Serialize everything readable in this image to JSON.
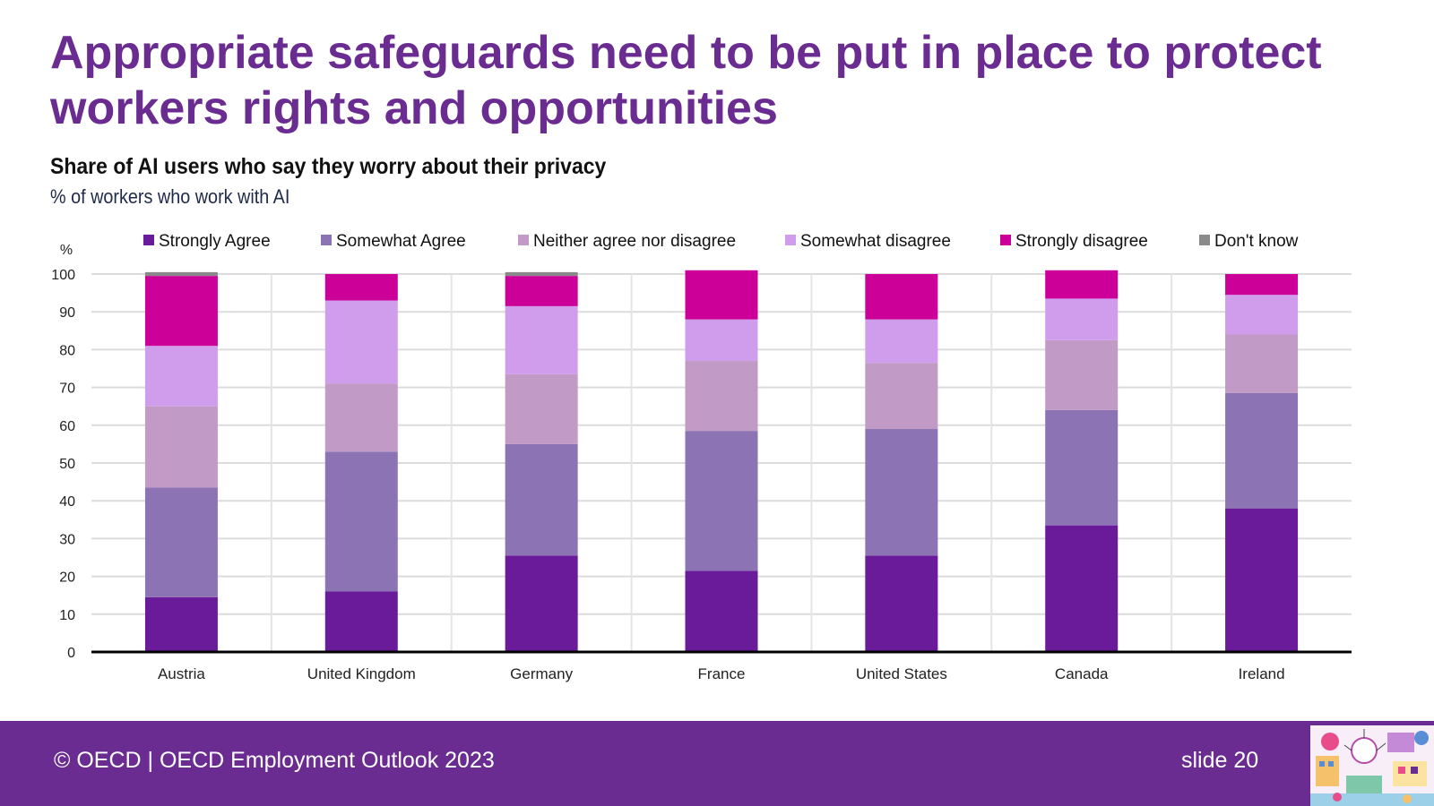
{
  "slide": {
    "title": "Appropriate safeguards need to be put in place to protect workers rights and opportunities"
  },
  "footer": {
    "copyright": "© OECD | OECD Employment Outlook 2023",
    "slide_number": "slide 20"
  },
  "colors": {
    "brand": "#6a2c91",
    "strongly_agree": "#6a1b9a",
    "somewhat_agree": "#8c74b4",
    "neither": "#c19ac6",
    "somewhat_disagree": "#d09cec",
    "strongly_disagree": "#cc0099",
    "dont_know": "#8a8a8a"
  },
  "chart_data": {
    "type": "bar",
    "stacked": true,
    "title": "Share of AI users who say they worry about their privacy",
    "subtitle": "% of workers who work with AI",
    "ylabel": "%",
    "xlabel": "",
    "ylim": [
      0,
      100
    ],
    "yticks": [
      0,
      10,
      20,
      30,
      40,
      50,
      60,
      70,
      80,
      90,
      100
    ],
    "grid": true,
    "legend_position": "top",
    "categories": [
      "Austria",
      "United Kingdom",
      "Germany",
      "France",
      "United States",
      "Canada",
      "Ireland"
    ],
    "series": [
      {
        "name": "Strongly Agree",
        "color": "#6a1b9a",
        "values": [
          14.5,
          16,
          25.5,
          21.5,
          25.5,
          33.5,
          38
        ]
      },
      {
        "name": "Somewhat Agree",
        "color": "#8c74b4",
        "values": [
          29,
          37,
          29.5,
          37,
          33.5,
          30.5,
          30.5
        ]
      },
      {
        "name": "Neither agree nor disagree",
        "color": "#c19ac6",
        "values": [
          21.5,
          18,
          18.5,
          18.5,
          17.5,
          18.5,
          15.5
        ]
      },
      {
        "name": "Somewhat disagree",
        "color": "#d09cec",
        "values": [
          16,
          22,
          18,
          11,
          11.5,
          11,
          10.5
        ]
      },
      {
        "name": "Strongly disagree",
        "color": "#cc0099",
        "values": [
          18.5,
          7,
          8,
          13,
          12,
          7.5,
          5.5
        ]
      },
      {
        "name": "Don't know",
        "color": "#8a8a8a",
        "values": [
          1,
          0,
          1,
          0,
          0,
          0,
          0
        ]
      }
    ]
  }
}
